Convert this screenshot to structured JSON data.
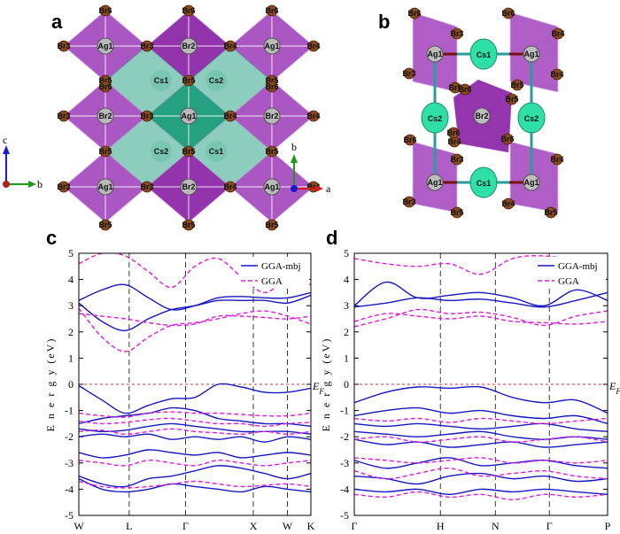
{
  "panels": {
    "a": "a",
    "b": "b",
    "c": "c",
    "d": "d"
  },
  "atoms": {
    "br3": "Br3",
    "br4": "Br4",
    "br5": "Br5",
    "br6": "Br6",
    "ag1": "Ag1",
    "br2": "Br2",
    "cs1": "Cs1",
    "cs2": "Cs2"
  },
  "axes_a": {
    "vertical": "c",
    "horizontal": "b"
  },
  "axes_b": {
    "vertical": "b",
    "horizontal": "a"
  },
  "colors": {
    "purple": "#8e2aa8",
    "purple_light": "#a64dc0",
    "teal": "#1a9c7c",
    "cs_green": "#2fe0a6",
    "gga_mbj": "#1717c4",
    "gga": "#e01adc",
    "fermi": "#e03030"
  },
  "chart_data": [
    {
      "type": "line",
      "panel": "c",
      "ylabel": "E n e r g y (eV)",
      "ylim": [
        -5,
        5
      ],
      "yticks": [
        "5",
        "4",
        "3",
        "2",
        "1",
        "0",
        "-1",
        "-2",
        "-3",
        "-4",
        "-5"
      ],
      "kpoints": [
        "W",
        "L",
        "Γ",
        "X",
        "W",
        "K"
      ],
      "fermi_label": "E_F",
      "legend": [
        "GGA-mbj",
        "GGA"
      ],
      "x": [
        0,
        0.5,
        1,
        1.5,
        2,
        2.5,
        3,
        3.5,
        4,
        4.5,
        5
      ],
      "series": [
        {
          "name": "GGA-mbj",
          "values": [
            3.2,
            3.6,
            3.8,
            3.3,
            2.85,
            3.0,
            3.3,
            3.35,
            3.3,
            3.3,
            3.5
          ]
        },
        {
          "name": "GGA-mbj",
          "values": [
            3.1,
            2.4,
            2.05,
            2.5,
            2.85,
            3.0,
            3.2,
            3.2,
            3.2,
            3.1,
            3.4
          ]
        },
        {
          "name": "GGA-mbj",
          "values": [
            -0.05,
            -0.6,
            -1.1,
            -0.8,
            -0.55,
            -0.5,
            0.0,
            -0.1,
            -0.3,
            -0.3,
            -0.15
          ]
        },
        {
          "name": "GGA-mbj",
          "values": [
            -1.5,
            -1.3,
            -1.2,
            -1.1,
            -0.9,
            -1.0,
            -1.3,
            -1.4,
            -1.5,
            -1.5,
            -1.6
          ]
        },
        {
          "name": "GGA-mbj",
          "values": [
            -1.7,
            -1.8,
            -1.75,
            -1.6,
            -1.5,
            -1.6,
            -1.7,
            -1.8,
            -1.8,
            -1.8,
            -1.9
          ]
        },
        {
          "name": "GGA-mbj",
          "values": [
            -2.0,
            -1.9,
            -2.0,
            -1.9,
            -2.1,
            -2.0,
            -2.1,
            -2.0,
            -2.2,
            -2.0,
            -2.1
          ]
        },
        {
          "name": "GGA-mbj",
          "values": [
            -2.6,
            -2.8,
            -2.7,
            -2.5,
            -2.6,
            -2.7,
            -2.6,
            -2.8,
            -2.7,
            -2.6,
            -2.7
          ]
        },
        {
          "name": "GGA-mbj",
          "values": [
            -3.5,
            -3.8,
            -3.9,
            -3.6,
            -3.5,
            -3.3,
            -3.1,
            -3.2,
            -3.4,
            -3.6,
            -3.4
          ]
        },
        {
          "name": "GGA-mbj",
          "values": [
            -3.6,
            -4.0,
            -4.1,
            -4.0,
            -3.8,
            -3.9,
            -4.0,
            -4.1,
            -3.9,
            -4.0,
            -4.1
          ]
        },
        {
          "name": "GGA",
          "values": [
            4.6,
            5.0,
            4.9,
            4.3,
            3.7,
            4.5,
            4.8,
            4.1,
            3.5,
            4.0,
            3.8
          ]
        },
        {
          "name": "GGA",
          "values": [
            2.9,
            1.8,
            1.25,
            1.8,
            2.25,
            2.35,
            2.5,
            2.7,
            2.8,
            2.6,
            2.3
          ]
        },
        {
          "name": "GGA",
          "values": [
            2.7,
            2.6,
            2.5,
            2.35,
            2.25,
            2.3,
            2.6,
            2.6,
            2.55,
            2.5,
            2.6
          ]
        },
        {
          "name": "GGA",
          "values": [
            -1.1,
            -1.2,
            -1.25,
            -1.1,
            -1.05,
            -1.1,
            -1.1,
            -1.15,
            -1.2,
            -1.2,
            -1.1
          ]
        },
        {
          "name": "GGA",
          "values": [
            -1.4,
            -1.5,
            -1.45,
            -1.35,
            -1.3,
            -1.4,
            -1.5,
            -1.5,
            -1.6,
            -1.5,
            -1.45
          ]
        },
        {
          "name": "GGA",
          "values": [
            -1.8,
            -1.75,
            -1.9,
            -1.8,
            -1.7,
            -1.8,
            -1.85,
            -1.9,
            -1.8,
            -1.9,
            -1.8
          ]
        },
        {
          "name": "GGA",
          "values": [
            -2.9,
            -3.0,
            -3.1,
            -2.9,
            -3.0,
            -3.1,
            -2.9,
            -3.0,
            -3.1,
            -3.0,
            -2.9
          ]
        },
        {
          "name": "GGA",
          "values": [
            -3.7,
            -3.9,
            -3.95,
            -3.9,
            -3.8,
            -3.7,
            -3.8,
            -3.9,
            -3.85,
            -3.8,
            -3.9
          ]
        }
      ]
    },
    {
      "type": "line",
      "panel": "d",
      "ylabel": "E n e r g y (eV)",
      "ylim": [
        -5,
        5
      ],
      "yticks": [
        "5",
        "4",
        "3",
        "2",
        "1",
        "0",
        "-1",
        "-2",
        "-3",
        "-4",
        "-5"
      ],
      "kpoints": [
        "Γ",
        "H",
        "N",
        "Γ",
        "P"
      ],
      "fermi_label": "E_F",
      "legend": [
        "GGA-mbj",
        "GGA"
      ],
      "x": [
        0,
        0.5,
        1,
        1.5,
        2,
        2.5,
        3,
        3.5,
        4
      ],
      "series": [
        {
          "name": "GGA-mbj",
          "values": [
            3.0,
            3.9,
            3.3,
            3.4,
            3.5,
            3.3,
            3.0,
            3.6,
            3.2
          ]
        },
        {
          "name": "GGA-mbj",
          "values": [
            2.95,
            3.1,
            3.3,
            3.2,
            3.25,
            3.1,
            2.95,
            3.2,
            3.5
          ]
        },
        {
          "name": "GGA-mbj",
          "values": [
            -0.7,
            -0.3,
            -0.1,
            -0.15,
            -0.1,
            -0.5,
            -0.7,
            -0.6,
            -1.1
          ]
        },
        {
          "name": "GGA-mbj",
          "values": [
            -1.2,
            -1.0,
            -0.9,
            -1.1,
            -1.0,
            -1.2,
            -1.3,
            -1.2,
            -1.5
          ]
        },
        {
          "name": "GGA-mbj",
          "values": [
            -1.5,
            -1.6,
            -1.5,
            -1.6,
            -1.7,
            -1.6,
            -1.5,
            -1.7,
            -1.8
          ]
        },
        {
          "name": "GGA-mbj",
          "values": [
            -1.8,
            -1.9,
            -2.0,
            -1.9,
            -1.8,
            -2.0,
            -2.1,
            -2.0,
            -2.1
          ]
        },
        {
          "name": "GGA-mbj",
          "values": [
            -2.1,
            -2.3,
            -2.2,
            -2.4,
            -2.3,
            -2.2,
            -2.4,
            -2.3,
            -2.2
          ]
        },
        {
          "name": "GGA-mbj",
          "values": [
            -2.9,
            -3.2,
            -3.0,
            -2.8,
            -3.1,
            -3.0,
            -2.9,
            -3.1,
            -3.2
          ]
        },
        {
          "name": "GGA-mbj",
          "values": [
            -3.5,
            -3.6,
            -3.8,
            -3.5,
            -3.4,
            -3.6,
            -3.5,
            -3.7,
            -3.6
          ]
        },
        {
          "name": "GGA-mbj",
          "values": [
            -4.0,
            -4.1,
            -4.0,
            -4.2,
            -4.0,
            -4.1,
            -4.0,
            -4.1,
            -4.2
          ]
        },
        {
          "name": "GGA",
          "values": [
            4.8,
            4.6,
            4.5,
            4.6,
            4.2,
            4.8,
            4.9,
            4.7,
            4.4
          ]
        },
        {
          "name": "GGA",
          "values": [
            2.2,
            2.5,
            2.85,
            2.7,
            2.75,
            2.55,
            2.25,
            2.6,
            2.8
          ]
        },
        {
          "name": "GGA",
          "values": [
            2.4,
            2.7,
            2.6,
            2.5,
            2.6,
            2.4,
            2.35,
            2.3,
            2.4
          ]
        },
        {
          "name": "GGA",
          "values": [
            -1.3,
            -1.4,
            -1.3,
            -1.45,
            -1.3,
            -1.4,
            -1.5,
            -1.4,
            -1.3
          ]
        },
        {
          "name": "GGA",
          "values": [
            -2.1,
            -2.0,
            -2.2,
            -2.1,
            -2.0,
            -2.2,
            -2.1,
            -2.0,
            -2.2
          ]
        },
        {
          "name": "GGA",
          "values": [
            -2.8,
            -2.9,
            -3.0,
            -2.9,
            -2.8,
            -3.0,
            -2.9,
            -3.0,
            -2.9
          ]
        },
        {
          "name": "GGA",
          "values": [
            -3.3,
            -3.6,
            -3.4,
            -3.2,
            -3.5,
            -3.4,
            -3.3,
            -3.5,
            -3.6
          ]
        },
        {
          "name": "GGA",
          "values": [
            -4.2,
            -4.3,
            -4.1,
            -4.3,
            -4.2,
            -4.4,
            -4.2,
            -4.3,
            -4.2
          ]
        }
      ]
    }
  ]
}
